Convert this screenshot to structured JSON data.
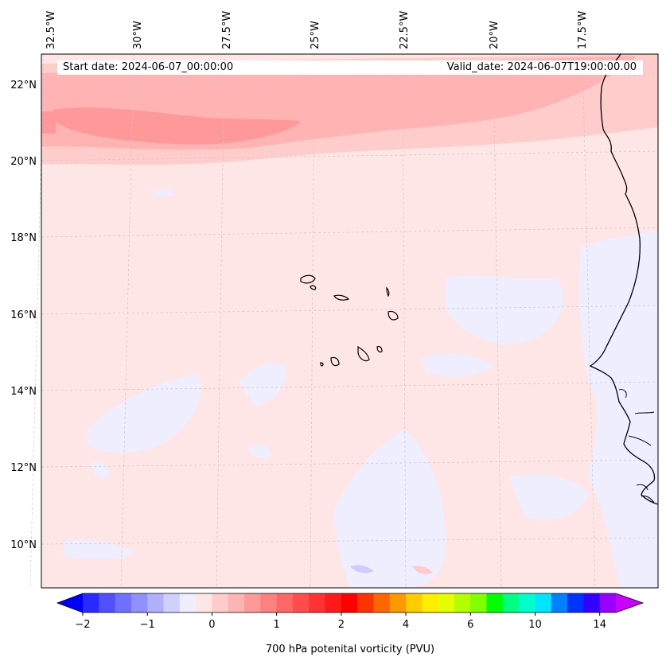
{
  "header": {
    "start_date": "Start date: 2024-06-07_00:00:00",
    "valid_date": "Valid_date: 2024-06-07T19:00:00.00"
  },
  "map": {
    "lon_labels": [
      "32.5°W",
      "30°W",
      "27.5°W",
      "25°W",
      "22.5°W",
      "20°W",
      "17.5°W"
    ],
    "lat_labels": [
      "22°N",
      "20°N",
      "18°N",
      "16°N",
      "14°N",
      "12°N",
      "10°N"
    ]
  },
  "colorbar": {
    "label": "700 hPa potenital vorticity (PVU)",
    "tick_labels": [
      "−2",
      "−1",
      "0",
      "1",
      "2",
      "4",
      "6",
      "10",
      "14"
    ],
    "colors": [
      "#0000ff",
      "#2a2aff",
      "#5050ff",
      "#7070ff",
      "#9090ff",
      "#b0b0ff",
      "#d0d0ff",
      "#eeeeff",
      "#ffe6e6",
      "#ffcccc",
      "#ffb3b3",
      "#ff9999",
      "#ff8080",
      "#ff6666",
      "#ff4d4d",
      "#ff3333",
      "#ff1a1a",
      "#ff0000",
      "#ff3300",
      "#ff6600",
      "#ff9900",
      "#ffcc00",
      "#ffee00",
      "#e6ff00",
      "#b3ff00",
      "#80ff00",
      "#00ff00",
      "#00ff80",
      "#00ffcc",
      "#00e5ff",
      "#0080ff",
      "#0033ff",
      "#3300ff",
      "#9900ff",
      "#cc00ff"
    ]
  },
  "colors": {
    "frame": "#000000",
    "grid": "#c8c8c8"
  }
}
